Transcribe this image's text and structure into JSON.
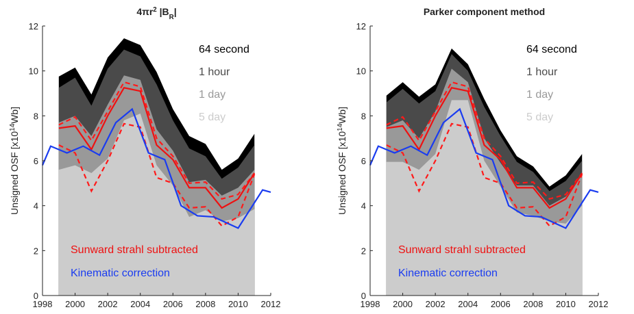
{
  "chart_data": [
    {
      "type": "area",
      "title_parts": [
        {
          "text": "4πr"
        },
        {
          "text": "2",
          "shift": "super"
        },
        {
          "text": " |B"
        },
        {
          "text": "R",
          "shift": "sub"
        },
        {
          "text": "|"
        }
      ],
      "y_label_parts": [
        {
          "text": "Unsigned OSF [x10"
        },
        {
          "text": "14",
          "shift": "super"
        },
        {
          "text": "Wb]"
        }
      ],
      "x": [
        1999,
        2000,
        2001,
        2002,
        2003,
        2004,
        2005,
        2006,
        2007,
        2008,
        2009,
        2010,
        2011
      ],
      "xlim": [
        1998,
        2012
      ],
      "xticks": [
        1998,
        2000,
        2002,
        2004,
        2006,
        2008,
        2010,
        2012
      ],
      "ylim": [
        0,
        12
      ],
      "yticks": [
        0,
        2,
        4,
        6,
        8,
        10,
        12
      ],
      "series": [
        {
          "name": "64 second",
          "color": "#000000",
          "kind": "area",
          "values": [
            9.75,
            10.15,
            8.95,
            10.6,
            11.45,
            11.15,
            9.95,
            8.3,
            7.1,
            6.75,
            5.6,
            6.1,
            7.2
          ]
        },
        {
          "name": "1 hour",
          "color": "#4a4a4a",
          "kind": "area",
          "values": [
            9.25,
            9.7,
            8.45,
            10.1,
            10.95,
            10.65,
            9.4,
            7.8,
            6.55,
            6.2,
            5.2,
            5.7,
            6.7
          ]
        },
        {
          "name": "1 day",
          "color": "#999999",
          "kind": "area",
          "values": [
            7.7,
            8.0,
            7.1,
            8.5,
            9.8,
            9.6,
            7.4,
            6.45,
            5.05,
            5.15,
            4.45,
            4.8,
            5.6
          ]
        },
        {
          "name": "5 day",
          "color": "#cccccc",
          "kind": "area",
          "values": [
            5.6,
            5.8,
            5.45,
            6.1,
            7.8,
            8.1,
            5.8,
            4.9,
            3.5,
            3.8,
            3.3,
            3.45,
            3.85
          ]
        },
        {
          "color": "#ff1a1a",
          "kind": "line",
          "dash": true,
          "values": [
            7.6,
            7.95,
            6.9,
            8.2,
            9.5,
            9.3,
            7.0,
            6.2,
            5.0,
            5.05,
            4.3,
            4.5,
            5.45
          ]
        },
        {
          "color": "#ff1a1a",
          "kind": "line",
          "dash": true,
          "values": [
            6.7,
            6.35,
            4.65,
            6.0,
            7.65,
            7.5,
            5.25,
            5.0,
            3.9,
            3.95,
            3.1,
            3.5,
            5.4
          ]
        },
        {
          "name": "Sunward strahl subtracted",
          "color": "#ee1111",
          "kind": "line",
          "values": [
            7.45,
            7.55,
            6.5,
            8.0,
            9.25,
            9.1,
            6.7,
            6.05,
            4.8,
            4.8,
            3.9,
            4.3,
            5.45
          ]
        },
        {
          "name": "Kinematic correction",
          "color": "#1a3cf0",
          "kind": "line",
          "x": [
            1998,
            1998.5,
            1999.5,
            2000.5,
            2001.5,
            2002.5,
            2003.5,
            2004.5,
            2005.5,
            2006.5,
            2007.5,
            2008.5,
            2010,
            2011.5,
            2012
          ],
          "values": [
            5.8,
            6.65,
            6.35,
            6.65,
            6.25,
            7.7,
            8.3,
            6.35,
            6.05,
            4.0,
            3.55,
            3.5,
            3.0,
            4.7,
            4.6
          ]
        }
      ]
    },
    {
      "type": "area",
      "title_parts": [
        {
          "text": "Parker component method"
        }
      ],
      "y_label_parts": [
        {
          "text": "Unsigned OSF [x10"
        },
        {
          "text": "14",
          "shift": "super"
        },
        {
          "text": "Wb]"
        }
      ],
      "x": [
        1999,
        2000,
        2001,
        2002,
        2003,
        2004,
        2005,
        2006,
        2007,
        2008,
        2009,
        2010,
        2011
      ],
      "xlim": [
        1998,
        2012
      ],
      "xticks": [
        1998,
        2000,
        2002,
        2004,
        2006,
        2008,
        2010,
        2012
      ],
      "ylim": [
        0,
        12
      ],
      "yticks": [
        0,
        2,
        4,
        6,
        8,
        10,
        12
      ],
      "series": [
        {
          "name": "64 second",
          "color": "#000000",
          "kind": "area",
          "values": [
            8.9,
            9.5,
            8.85,
            9.4,
            11.0,
            10.3,
            8.75,
            7.35,
            6.2,
            5.75,
            4.85,
            5.35,
            6.3
          ]
        },
        {
          "name": "1 hour",
          "color": "#4a4a4a",
          "kind": "area",
          "values": [
            8.6,
            9.2,
            8.55,
            9.1,
            10.75,
            10.0,
            8.4,
            7.1,
            5.95,
            5.5,
            4.65,
            5.1,
            6.0
          ]
        },
        {
          "name": "1 day",
          "color": "#999999",
          "kind": "area",
          "values": [
            7.5,
            7.8,
            7.0,
            8.2,
            10.1,
            9.5,
            7.0,
            5.9,
            4.9,
            4.9,
            4.0,
            4.4,
            5.35
          ]
        },
        {
          "name": "5 day",
          "color": "#cccccc",
          "kind": "area",
          "values": [
            5.95,
            5.95,
            5.6,
            6.3,
            8.7,
            8.7,
            6.0,
            4.85,
            3.7,
            3.55,
            3.3,
            3.2,
            4.0
          ]
        },
        {
          "color": "#ff1a1a",
          "kind": "line",
          "dash": true,
          "values": [
            7.6,
            7.95,
            6.9,
            8.2,
            9.5,
            9.3,
            7.0,
            6.2,
            5.0,
            5.05,
            4.3,
            4.5,
            5.45
          ]
        },
        {
          "color": "#ff1a1a",
          "kind": "line",
          "dash": true,
          "values": [
            6.7,
            6.35,
            4.65,
            6.0,
            7.65,
            7.5,
            5.25,
            5.0,
            3.9,
            3.95,
            3.1,
            3.5,
            5.4
          ]
        },
        {
          "name": "Sunward strahl subtracted",
          "color": "#ee1111",
          "kind": "line",
          "values": [
            7.45,
            7.55,
            6.5,
            8.0,
            9.25,
            9.1,
            6.7,
            6.05,
            4.8,
            4.8,
            3.9,
            4.3,
            5.45
          ]
        },
        {
          "name": "Kinematic correction",
          "color": "#1a3cf0",
          "kind": "line",
          "x": [
            1998,
            1998.5,
            1999.5,
            2000.5,
            2001.5,
            2002.5,
            2003.5,
            2004.5,
            2005.5,
            2006.5,
            2007.5,
            2008.5,
            2010,
            2011.5,
            2012
          ],
          "values": [
            5.8,
            6.65,
            6.35,
            6.65,
            6.25,
            7.7,
            8.3,
            6.35,
            6.05,
            4.0,
            3.55,
            3.5,
            3.0,
            4.7,
            4.6
          ]
        }
      ]
    }
  ]
}
